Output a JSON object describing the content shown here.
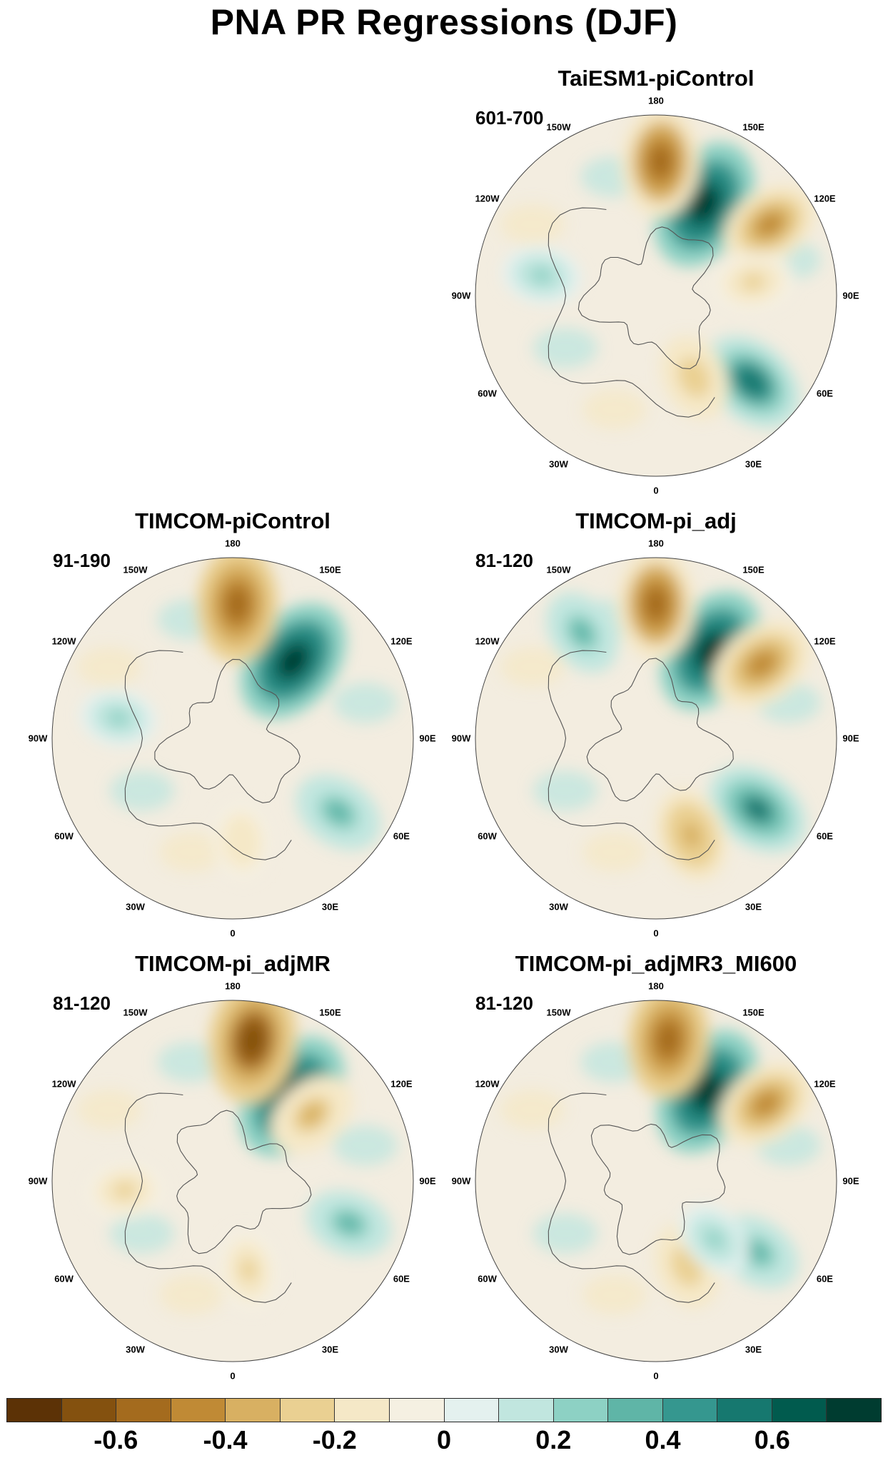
{
  "title": "PNA PR Regressions (DJF)",
  "panels": [
    {
      "name": "TaiESM1-piControl",
      "years": "601-700",
      "lon_labels": [
        "180",
        "150E",
        "120E",
        "90E",
        "60E",
        "30E",
        "0",
        "30W",
        "60W",
        "90W",
        "120W",
        "150W"
      ],
      "blobs": [
        {
          "lon": 152,
          "lat": 50,
          "strength": 0.75
        },
        {
          "lon": 178,
          "lat": 38,
          "strength": -0.55
        },
        {
          "lon": 122,
          "lat": 38,
          "strength": -0.42
        },
        {
          "lon": 98,
          "lat": 52,
          "strength": -0.25
        },
        {
          "lon": 48,
          "lat": 40,
          "strength": 0.52
        },
        {
          "lon": 25,
          "lat": 55,
          "strength": -0.3
        },
        {
          "lon": 260,
          "lat": 45,
          "strength": 0.22
        }
      ]
    },
    {
      "name": "TIMCOM-piControl",
      "years": "91-190",
      "lon_labels": [
        "180",
        "150E",
        "120E",
        "90E",
        "60E",
        "30E",
        "0",
        "30W",
        "60W",
        "90W",
        "120W",
        "150W"
      ],
      "blobs": [
        {
          "lon": 142,
          "lat": 52,
          "strength": 0.72
        },
        {
          "lon": 178,
          "lat": 38,
          "strength": -0.6
        },
        {
          "lon": 55,
          "lat": 40,
          "strength": 0.35
        },
        {
          "lon": 5,
          "lat": 50,
          "strength": -0.2
        },
        {
          "lon": 260,
          "lat": 45,
          "strength": 0.2
        }
      ]
    },
    {
      "name": "TIMCOM-pi_adj",
      "years": "81-120",
      "lon_labels": [
        "180",
        "150E",
        "120E",
        "90E",
        "60E",
        "30E",
        "0",
        "30W",
        "60W",
        "90W",
        "120W",
        "150W"
      ],
      "blobs": [
        {
          "lon": 148,
          "lat": 50,
          "strength": 0.72
        },
        {
          "lon": 180,
          "lat": 38,
          "strength": -0.55
        },
        {
          "lon": 125,
          "lat": 40,
          "strength": -0.5
        },
        {
          "lon": 55,
          "lat": 42,
          "strength": 0.5
        },
        {
          "lon": 20,
          "lat": 50,
          "strength": -0.38
        },
        {
          "lon": 215,
          "lat": 40,
          "strength": 0.3
        }
      ]
    },
    {
      "name": "TIMCOM-pi_adjMR",
      "years": "81-120",
      "lon_labels": [
        "180",
        "150E",
        "120E",
        "90E",
        "60E",
        "30E",
        "0",
        "30W",
        "60W",
        "90W",
        "120W",
        "150W"
      ],
      "blobs": [
        {
          "lon": 145,
          "lat": 50,
          "strength": 0.75
        },
        {
          "lon": 172,
          "lat": 35,
          "strength": -0.7
        },
        {
          "lon": 130,
          "lat": 50,
          "strength": -0.35
        },
        {
          "lon": 70,
          "lat": 42,
          "strength": 0.3
        },
        {
          "lon": 10,
          "lat": 55,
          "strength": -0.25
        },
        {
          "lon": 275,
          "lat": 48,
          "strength": -0.22
        }
      ]
    },
    {
      "name": "TIMCOM-pi_adjMR3_MI600",
      "years": "81-120",
      "lon_labels": [
        "180",
        "150E",
        "120E",
        "90E",
        "60E",
        "30E",
        "0",
        "30W",
        "60W",
        "90W",
        "120W",
        "150W"
      ],
      "blobs": [
        {
          "lon": 150,
          "lat": 50,
          "strength": 0.75
        },
        {
          "lon": 175,
          "lat": 35,
          "strength": -0.6
        },
        {
          "lon": 125,
          "lat": 38,
          "strength": -0.45
        },
        {
          "lon": 55,
          "lat": 42,
          "strength": 0.32
        },
        {
          "lon": 20,
          "lat": 55,
          "strength": -0.3
        },
        {
          "lon": 45,
          "lat": 58,
          "strength": 0.22
        }
      ]
    }
  ],
  "colorbar": {
    "colors": [
      "#5c3206",
      "#84510f",
      "#a46b1e",
      "#c08a35",
      "#d8b062",
      "#ead092",
      "#f5e8c7",
      "#f5f0e2",
      "#e4f1ef",
      "#c1e6df",
      "#8dd1c4",
      "#5fb5a7",
      "#35978f",
      "#16786f",
      "#015b4e",
      "#003c30"
    ],
    "labels": [
      "-0.6",
      "-0.4",
      "-0.2",
      "0",
      "0.2",
      "0.4",
      "0.6"
    ],
    "levels": [
      -0.6,
      -0.4,
      -0.2,
      0,
      0.2,
      0.4,
      0.6
    ]
  }
}
